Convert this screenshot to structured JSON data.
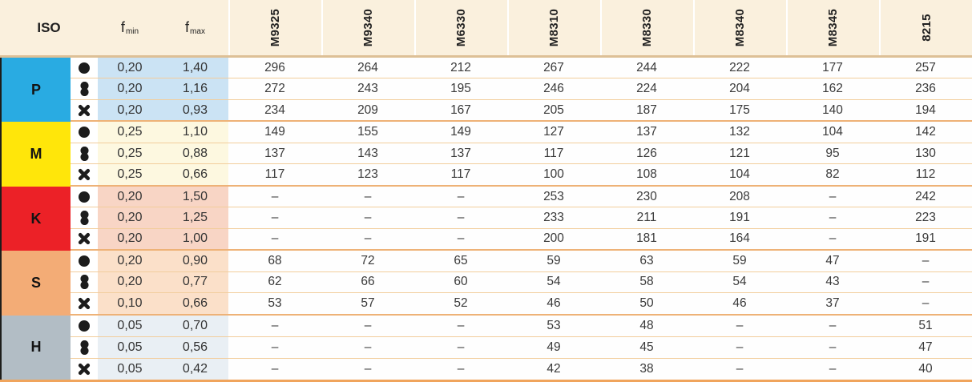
{
  "table": {
    "corner_label": "ISO",
    "feed_headers": [
      {
        "name": "f",
        "sub": "min"
      },
      {
        "name": "f",
        "sub": "max"
      }
    ],
    "grade_headers": [
      "M9325",
      "M9340",
      "M6330",
      "M8310",
      "M8330",
      "M8340",
      "M8345",
      "8215"
    ],
    "missing_value": "–",
    "groups": [
      {
        "iso": "P",
        "color": "#29abe2",
        "tint": "#cbe3f4",
        "rows": [
          {
            "icon": "circle",
            "fmin": "0,20",
            "fmax": "1,40",
            "values": [
              "296",
              "264",
              "212",
              "267",
              "244",
              "222",
              "177",
              "257"
            ]
          },
          {
            "icon": "double-circle",
            "fmin": "0,20",
            "fmax": "1,16",
            "values": [
              "272",
              "243",
              "195",
              "246",
              "224",
              "204",
              "162",
              "236"
            ]
          },
          {
            "icon": "cross",
            "fmin": "0,20",
            "fmax": "0,93",
            "values": [
              "234",
              "209",
              "167",
              "205",
              "187",
              "175",
              "140",
              "194"
            ]
          }
        ]
      },
      {
        "iso": "M",
        "color": "#ffe60a",
        "tint": "#fdf8e0",
        "rows": [
          {
            "icon": "circle",
            "fmin": "0,25",
            "fmax": "1,10",
            "values": [
              "149",
              "155",
              "149",
              "127",
              "137",
              "132",
              "104",
              "142"
            ]
          },
          {
            "icon": "double-circle",
            "fmin": "0,25",
            "fmax": "0,88",
            "values": [
              "137",
              "143",
              "137",
              "117",
              "126",
              "121",
              "95",
              "130"
            ]
          },
          {
            "icon": "cross",
            "fmin": "0,25",
            "fmax": "0,66",
            "values": [
              "117",
              "123",
              "117",
              "100",
              "108",
              "104",
              "82",
              "112"
            ]
          }
        ]
      },
      {
        "iso": "K",
        "color": "#ec2127",
        "tint": "#f8d5c5",
        "rows": [
          {
            "icon": "circle",
            "fmin": "0,20",
            "fmax": "1,50",
            "values": [
              "–",
              "–",
              "–",
              "253",
              "230",
              "208",
              "–",
              "242"
            ]
          },
          {
            "icon": "double-circle",
            "fmin": "0,20",
            "fmax": "1,25",
            "values": [
              "–",
              "–",
              "–",
              "233",
              "211",
              "191",
              "–",
              "223"
            ]
          },
          {
            "icon": "cross",
            "fmin": "0,20",
            "fmax": "1,00",
            "values": [
              "–",
              "–",
              "–",
              "200",
              "181",
              "164",
              "–",
              "191"
            ]
          }
        ]
      },
      {
        "iso": "S",
        "color": "#f3ac76",
        "tint": "#fbe0c9",
        "rows": [
          {
            "icon": "circle",
            "fmin": "0,20",
            "fmax": "0,90",
            "values": [
              "68",
              "72",
              "65",
              "59",
              "63",
              "59",
              "47",
              "–"
            ]
          },
          {
            "icon": "double-circle",
            "fmin": "0,20",
            "fmax": "0,77",
            "values": [
              "62",
              "66",
              "60",
              "54",
              "58",
              "54",
              "43",
              "–"
            ]
          },
          {
            "icon": "cross",
            "fmin": "0,10",
            "fmax": "0,66",
            "values": [
              "53",
              "57",
              "52",
              "46",
              "50",
              "46",
              "37",
              "–"
            ]
          }
        ]
      },
      {
        "iso": "H",
        "color": "#b2bdc5",
        "tint": "#e9eff4",
        "rows": [
          {
            "icon": "circle",
            "fmin": "0,05",
            "fmax": "0,70",
            "values": [
              "–",
              "–",
              "–",
              "53",
              "48",
              "–",
              "–",
              "51"
            ]
          },
          {
            "icon": "double-circle",
            "fmin": "0,05",
            "fmax": "0,56",
            "values": [
              "–",
              "–",
              "–",
              "49",
              "45",
              "–",
              "–",
              "47"
            ]
          },
          {
            "icon": "cross",
            "fmin": "0,05",
            "fmax": "0,42",
            "values": [
              "–",
              "–",
              "–",
              "42",
              "38",
              "–",
              "–",
              "40"
            ]
          }
        ]
      }
    ]
  }
}
